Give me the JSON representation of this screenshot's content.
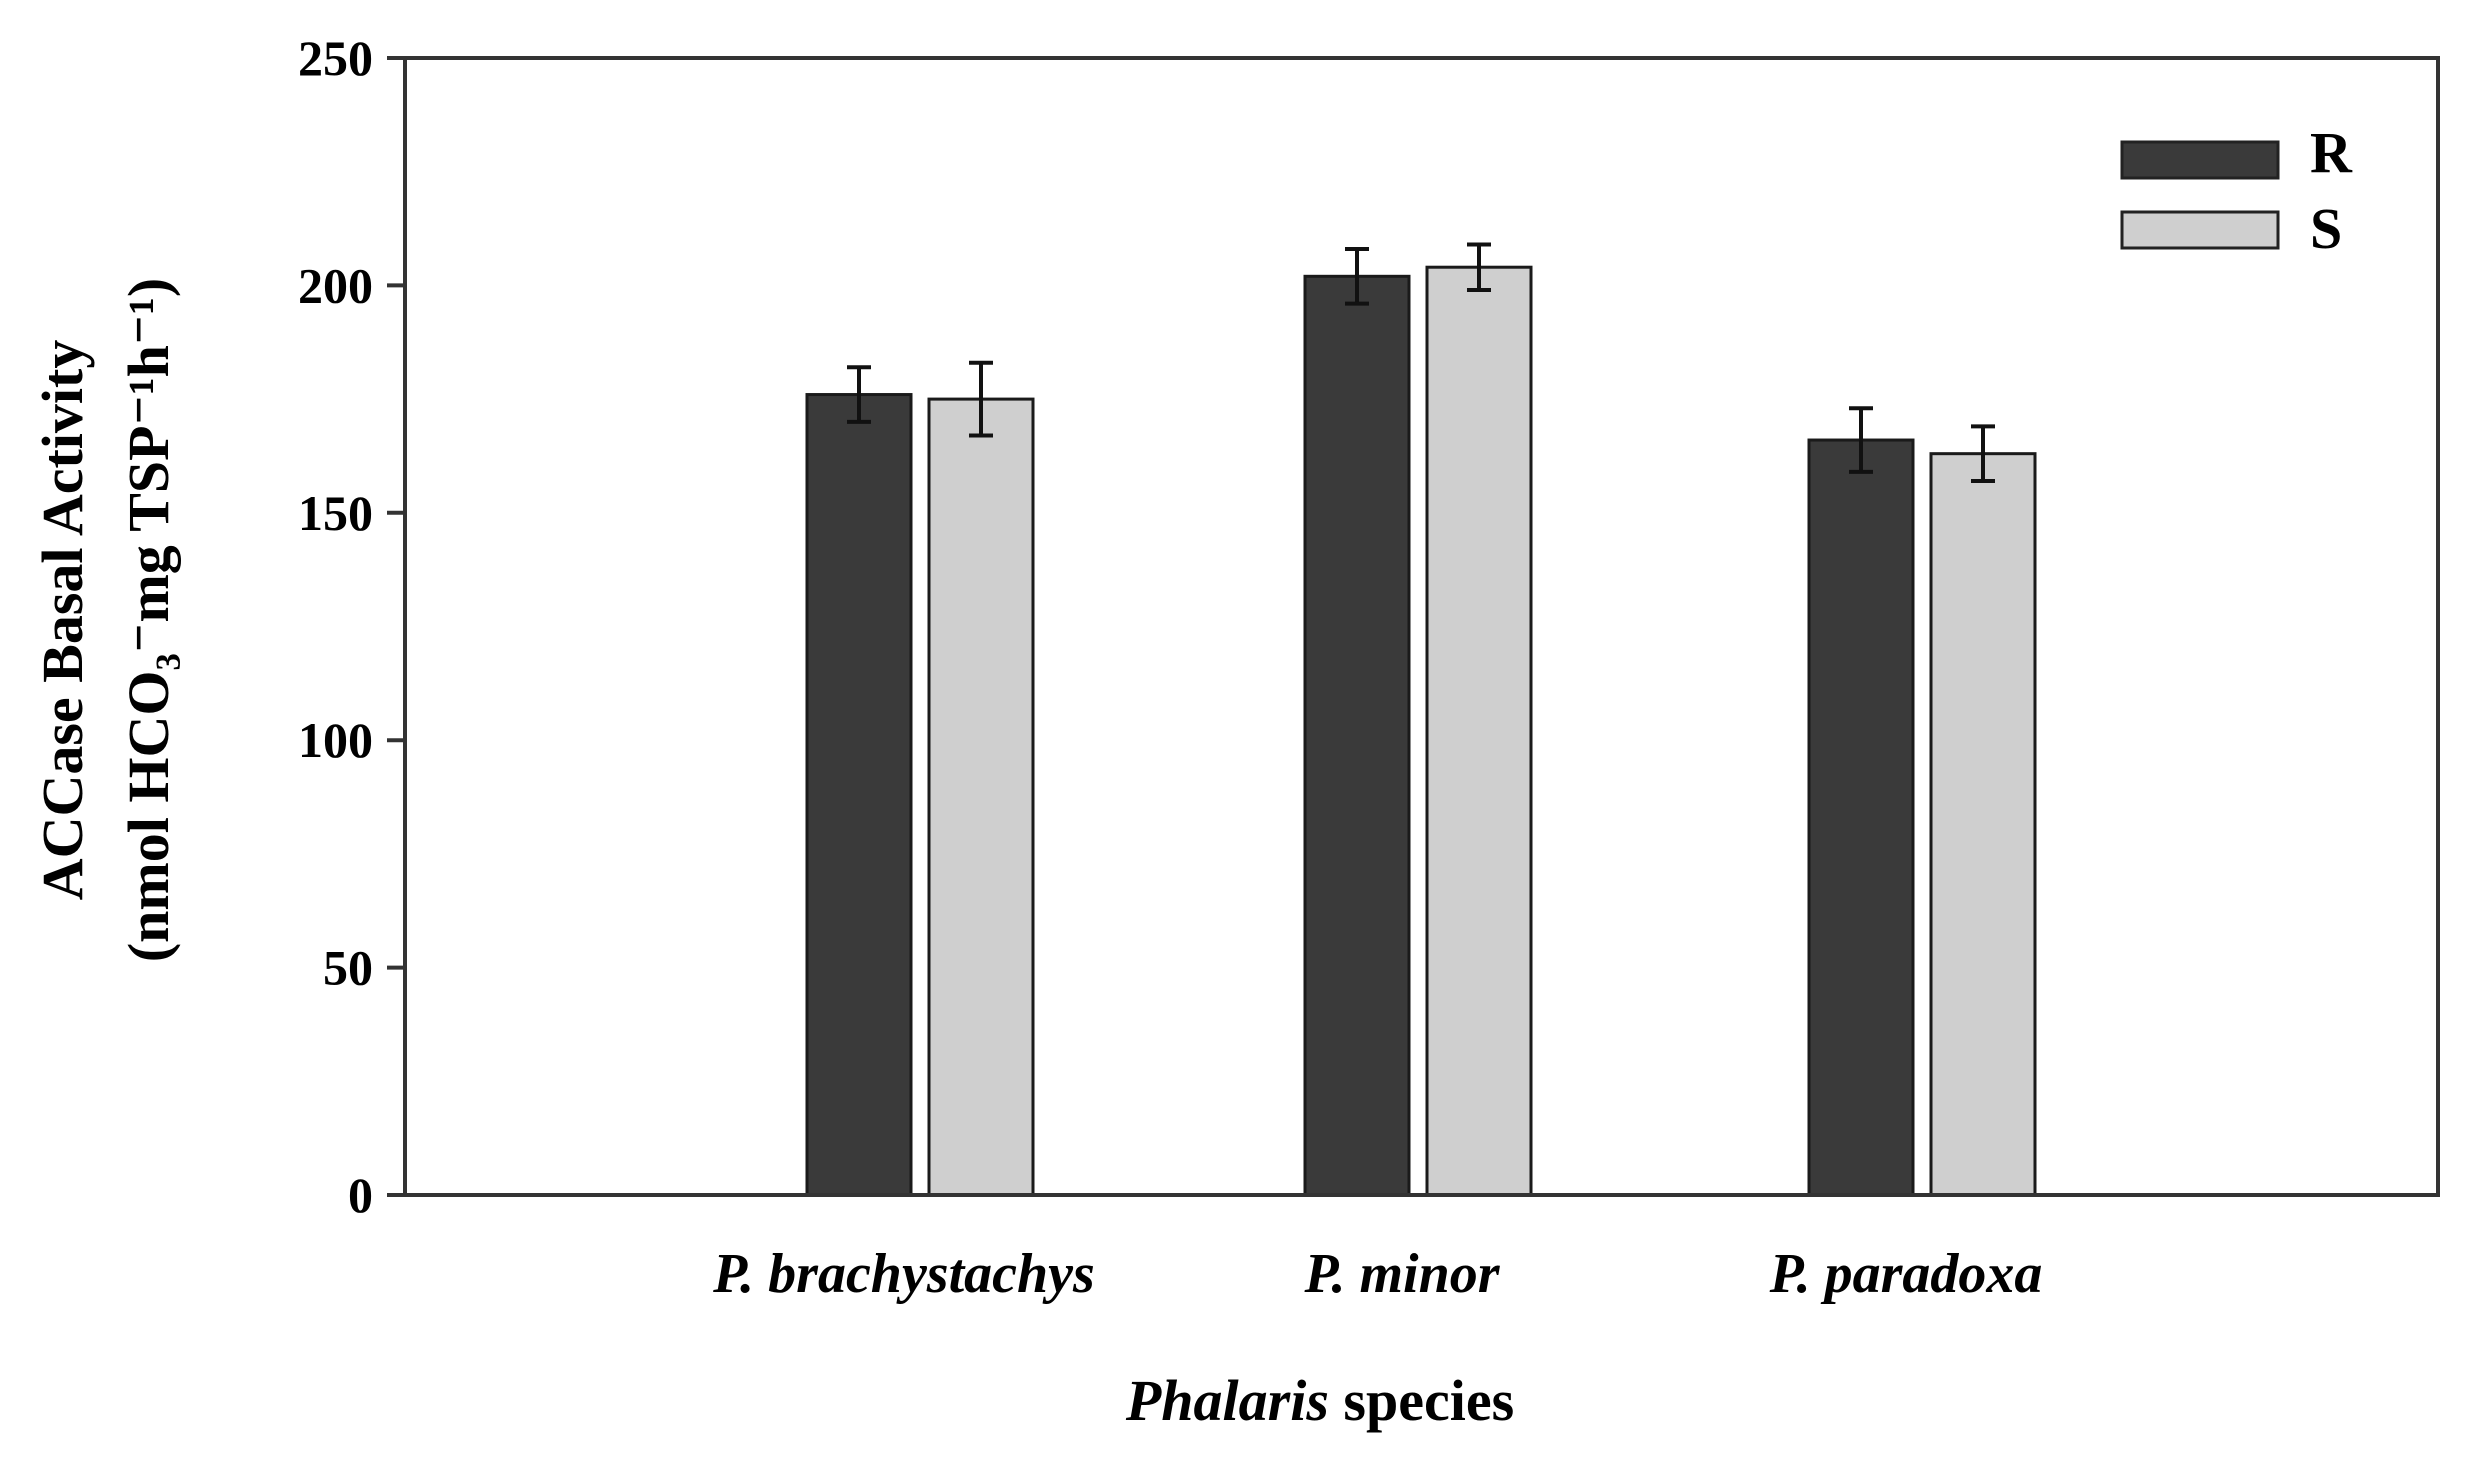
{
  "chart_data": {
    "type": "bar",
    "title": "",
    "categories": [
      "P. brachystachys",
      "P. minor",
      "P. paradoxa"
    ],
    "series": [
      {
        "name": "R",
        "color": "#3a3a3a",
        "values": [
          176,
          202,
          166
        ],
        "errors": [
          6,
          6,
          7
        ]
      },
      {
        "name": "S",
        "color": "#cfcfcf",
        "values": [
          175,
          204,
          163
        ],
        "errors": [
          8,
          5,
          6
        ]
      }
    ],
    "ylim": [
      0,
      250
    ],
    "yticks": [
      0,
      50,
      100,
      150,
      200,
      250
    ],
    "ylabel": {
      "line1": "ACCase Basal Activity",
      "line2": "(nmol HCO₃⁻mg TSP⁻¹h⁻¹)"
    },
    "xlabel": {
      "italic": "Phalaris",
      "rest": " species"
    },
    "legend_position": "top-right",
    "grid": false
  }
}
